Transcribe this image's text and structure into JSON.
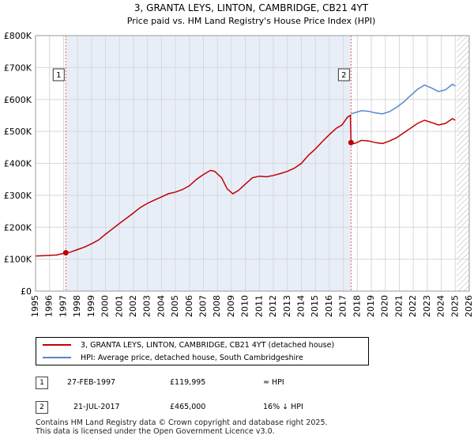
{
  "chart_data": {
    "type": "line",
    "title": "3, GRANTA LEYS, LINTON, CAMBRIDGE, CB21 4YT",
    "subtitle": "Price paid vs. HM Land Registry's House Price Index (HPI)",
    "xlim": [
      1995,
      2026
    ],
    "ylim": [
      0,
      800000
    ],
    "x_ticks": [
      "1995",
      "1996",
      "1997",
      "1998",
      "1999",
      "2000",
      "2001",
      "2002",
      "2003",
      "2004",
      "2005",
      "2006",
      "2007",
      "2008",
      "2009",
      "2010",
      "2011",
      "2012",
      "2013",
      "2014",
      "2015",
      "2016",
      "2017",
      "2018",
      "2019",
      "2020",
      "2021",
      "2022",
      "2023",
      "2024",
      "2025",
      "2026"
    ],
    "y_ticks": [
      "£0",
      "£100K",
      "£200K",
      "£300K",
      "£400K",
      "£500K",
      "£600K",
      "£700K",
      "£800K"
    ],
    "y_tick_values": [
      0,
      100000,
      200000,
      300000,
      400000,
      500000,
      600000,
      700000,
      800000
    ],
    "shaded_between": [
      1997.16,
      2017.55
    ],
    "hatched_after": 2025.1,
    "series": [
      {
        "name": "3, GRANTA LEYS, LINTON, CAMBRIDGE, CB21 4YT (detached house)",
        "color": "#c00000",
        "points": [
          [
            1995.0,
            110000
          ],
          [
            1995.5,
            111000
          ],
          [
            1996.0,
            112000
          ],
          [
            1996.5,
            113000
          ],
          [
            1997.16,
            119995
          ],
          [
            1997.5,
            122000
          ],
          [
            1998.0,
            130000
          ],
          [
            1998.5,
            138000
          ],
          [
            1999.0,
            148000
          ],
          [
            1999.5,
            160000
          ],
          [
            2000.0,
            178000
          ],
          [
            2000.5,
            195000
          ],
          [
            2001.0,
            212000
          ],
          [
            2001.5,
            228000
          ],
          [
            2002.0,
            245000
          ],
          [
            2002.5,
            262000
          ],
          [
            2003.0,
            275000
          ],
          [
            2003.5,
            285000
          ],
          [
            2004.0,
            295000
          ],
          [
            2004.5,
            305000
          ],
          [
            2005.0,
            310000
          ],
          [
            2005.5,
            318000
          ],
          [
            2006.0,
            330000
          ],
          [
            2006.5,
            350000
          ],
          [
            2007.0,
            365000
          ],
          [
            2007.5,
            378000
          ],
          [
            2007.8,
            375000
          ],
          [
            2008.3,
            355000
          ],
          [
            2008.7,
            320000
          ],
          [
            2009.1,
            305000
          ],
          [
            2009.5,
            315000
          ],
          [
            2010.0,
            335000
          ],
          [
            2010.5,
            355000
          ],
          [
            2011.0,
            360000
          ],
          [
            2011.5,
            358000
          ],
          [
            2012.0,
            362000
          ],
          [
            2012.5,
            368000
          ],
          [
            2013.0,
            375000
          ],
          [
            2013.5,
            385000
          ],
          [
            2014.0,
            400000
          ],
          [
            2014.5,
            425000
          ],
          [
            2015.0,
            445000
          ],
          [
            2015.5,
            468000
          ],
          [
            2016.0,
            490000
          ],
          [
            2016.5,
            510000
          ],
          [
            2016.9,
            520000
          ],
          [
            2017.3,
            545000
          ],
          [
            2017.5,
            550000
          ],
          [
            2017.55,
            465000
          ],
          [
            2017.8,
            462000
          ],
          [
            2018.3,
            472000
          ],
          [
            2018.8,
            470000
          ],
          [
            2019.3,
            465000
          ],
          [
            2019.8,
            462000
          ],
          [
            2020.3,
            470000
          ],
          [
            2020.8,
            480000
          ],
          [
            2021.3,
            495000
          ],
          [
            2021.8,
            510000
          ],
          [
            2022.3,
            525000
          ],
          [
            2022.8,
            535000
          ],
          [
            2023.3,
            528000
          ],
          [
            2023.8,
            520000
          ],
          [
            2024.3,
            525000
          ],
          [
            2024.8,
            540000
          ],
          [
            2025.0,
            535000
          ]
        ]
      },
      {
        "name": "HPI: Average price, detached house, South Cambridgeshire",
        "color": "#5588cc",
        "points": [
          [
            2017.55,
            555000
          ],
          [
            2017.8,
            558000
          ],
          [
            2018.3,
            565000
          ],
          [
            2018.8,
            563000
          ],
          [
            2019.3,
            558000
          ],
          [
            2019.8,
            555000
          ],
          [
            2020.3,
            562000
          ],
          [
            2020.8,
            575000
          ],
          [
            2021.3,
            592000
          ],
          [
            2021.8,
            612000
          ],
          [
            2022.3,
            632000
          ],
          [
            2022.8,
            645000
          ],
          [
            2023.3,
            636000
          ],
          [
            2023.8,
            625000
          ],
          [
            2024.3,
            630000
          ],
          [
            2024.8,
            648000
          ],
          [
            2025.0,
            642000
          ]
        ]
      }
    ],
    "annotations": [
      {
        "label": "1",
        "x": 1997.16,
        "y": 119995
      },
      {
        "label": "2",
        "x": 2017.55,
        "y": 465000
      }
    ]
  },
  "legend": {
    "red_label": "3, GRANTA LEYS, LINTON, CAMBRIDGE, CB21 4YT (detached house)",
    "blue_label": "HPI: Average price, detached house, South Cambridgeshire"
  },
  "transactions": [
    {
      "num": "1",
      "date": "27-FEB-1997",
      "price": "£119,995",
      "relation": "≈ HPI"
    },
    {
      "num": "2",
      "date": "21-JUL-2017",
      "price": "£465,000",
      "relation": "16% ↓ HPI"
    }
  ],
  "footer": {
    "line1": "Contains HM Land Registry data © Crown copyright and database right 2025.",
    "line2": "This data is licensed under the Open Government Licence v3.0."
  }
}
